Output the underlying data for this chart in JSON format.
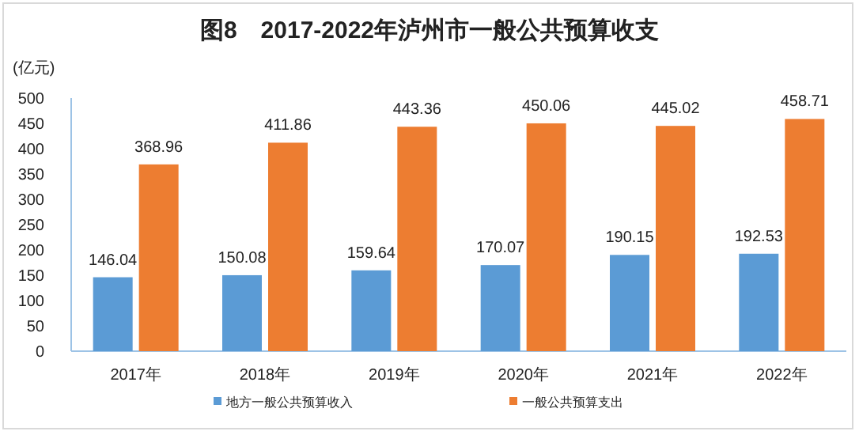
{
  "chart_data": {
    "type": "bar",
    "title": "图8　2017-2022年泸州市一般公共预算收支",
    "ylabel": "(亿元)",
    "categories": [
      "2017年",
      "2018年",
      "2019年",
      "2020年",
      "2021年",
      "2022年"
    ],
    "series": [
      {
        "name": "地方一般公共预算收入",
        "color": "#5b9bd5",
        "values": [
          146.04,
          150.08,
          159.64,
          170.07,
          190.15,
          192.53
        ]
      },
      {
        "name": "一般公共预算支出",
        "color": "#ed7d31",
        "values": [
          368.96,
          411.86,
          443.36,
          450.06,
          445.02,
          458.71
        ]
      }
    ],
    "ylim": [
      0,
      500
    ],
    "yticks": [
      0,
      50,
      100,
      150,
      200,
      250,
      300,
      350,
      400,
      450,
      500
    ],
    "data_labels": true,
    "legend": "bottom",
    "grid": false
  }
}
